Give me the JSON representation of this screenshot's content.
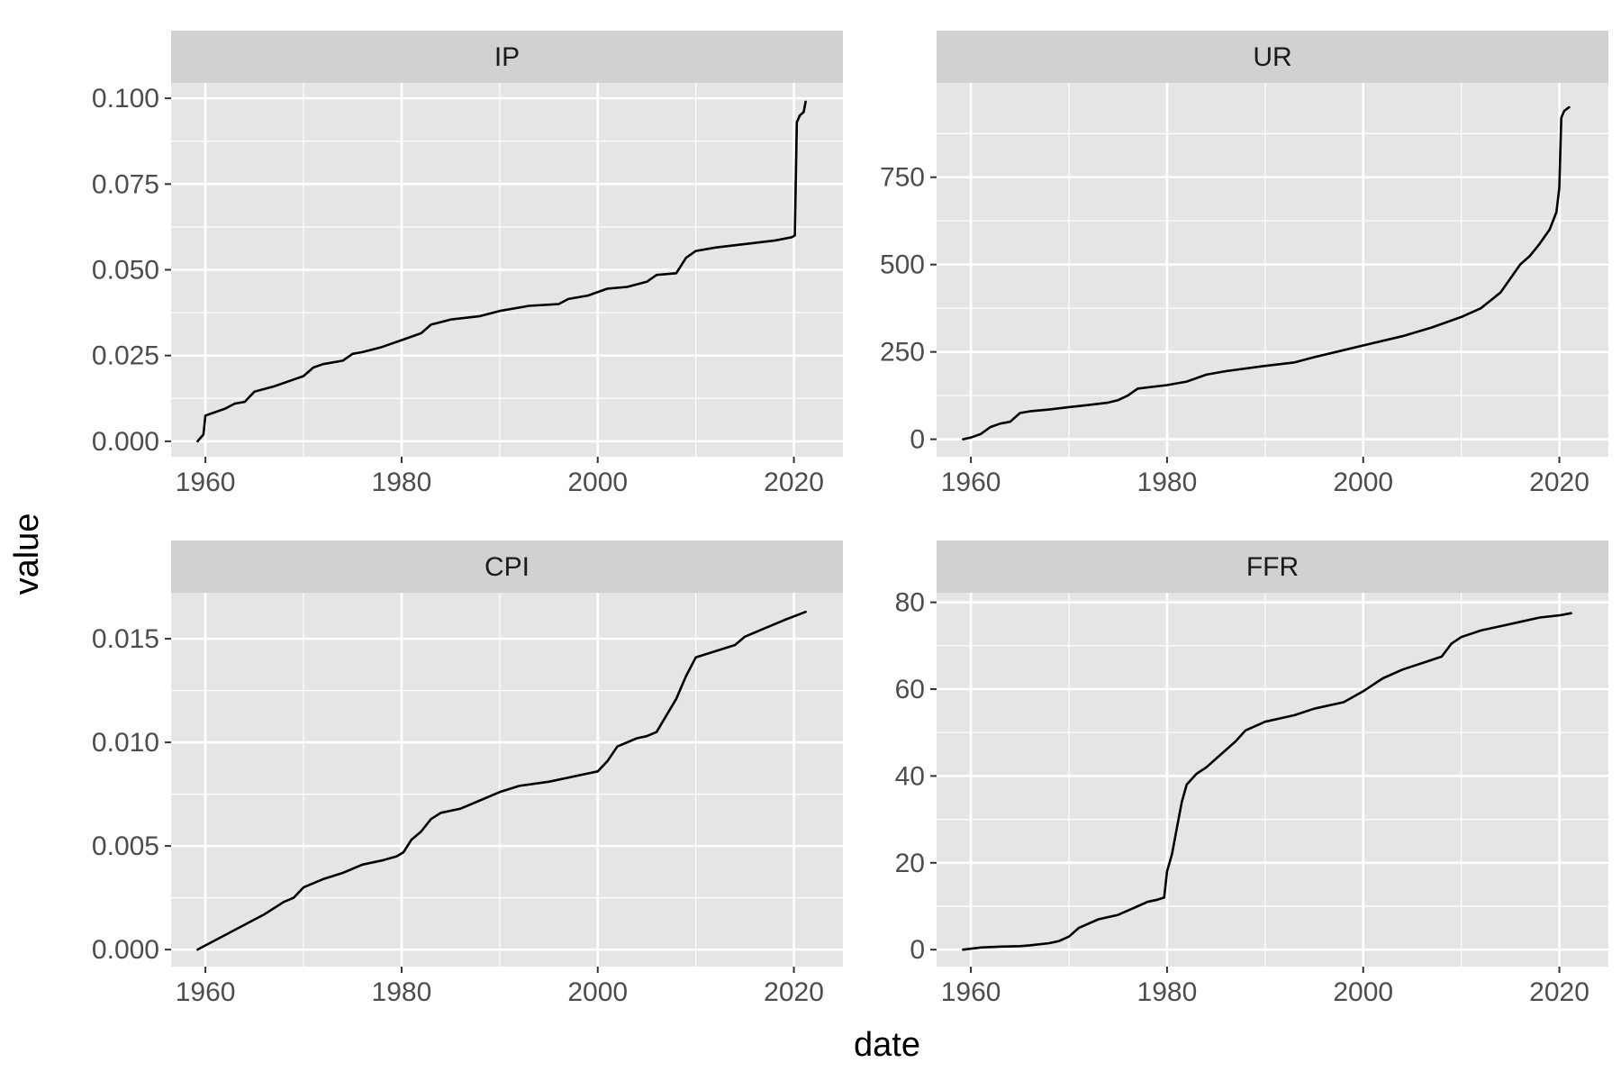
{
  "chart_data": {
    "type": "line",
    "layout": "facet_wrap",
    "xlabel": "date",
    "ylabel": "value",
    "colors": {
      "panel_bg": "#e5e5e5",
      "strip_bg": "#d1d1d1",
      "grid": "#ffffff",
      "line": "#000000",
      "tick_text": "#4d4d4d"
    },
    "panels": [
      {
        "strip": "IP",
        "xlim": [
          1956.5,
          2025
        ],
        "ylim": [
          -0.0045,
          0.1045
        ],
        "x_ticks": [
          1960,
          1980,
          2000,
          2020
        ],
        "y_ticks": [
          0,
          0.025,
          0.05,
          0.075,
          0.1
        ],
        "y_tick_labels": [
          "0.000",
          "0.025",
          "0.050",
          "0.075",
          "0.100"
        ],
        "series": [
          {
            "x": [
              1959.2,
              1959.8,
              1960.0,
              1961,
              1962,
              1963,
              1964,
              1965,
              1967,
              1969,
              1970,
              1971,
              1972,
              1974,
              1975,
              1976,
              1978,
              1980,
              1982,
              1983,
              1985,
              1988,
              1990,
              1993,
              1996,
              1997,
              1999,
              2001,
              2003,
              2005,
              2006,
              2008,
              2009,
              2010,
              2012,
              2015,
              2018,
              2019.8,
              2020.1,
              2020.3,
              2020.6,
              2021.0,
              2021.2
            ],
            "y": [
              0.0,
              0.002,
              0.0075,
              0.0085,
              0.0095,
              0.011,
              0.0115,
              0.0145,
              0.016,
              0.018,
              0.019,
              0.0215,
              0.0225,
              0.0235,
              0.0255,
              0.026,
              0.0275,
              0.0295,
              0.0315,
              0.034,
              0.0355,
              0.0365,
              0.038,
              0.0395,
              0.04,
              0.0415,
              0.0425,
              0.0445,
              0.045,
              0.0465,
              0.0485,
              0.049,
              0.0535,
              0.0555,
              0.0565,
              0.0575,
              0.0585,
              0.0595,
              0.06,
              0.093,
              0.095,
              0.096,
              0.099
            ]
          }
        ]
      },
      {
        "strip": "UR",
        "xlim": [
          1956.5,
          2025
        ],
        "ylim": [
          -50,
          1020
        ],
        "x_ticks": [
          1960,
          1980,
          2000,
          2020
        ],
        "y_ticks": [
          0,
          250,
          500,
          750
        ],
        "y_tick_labels": [
          "0",
          "250",
          "500",
          "750"
        ],
        "series": [
          {
            "x": [
              1959.2,
              1960,
              1961,
              1962,
              1963,
              1964,
              1965,
              1966,
              1968,
              1970,
              1972,
              1974,
              1975,
              1976,
              1977,
              1980,
              1982,
              1984,
              1986,
              1990,
              1993,
              1995,
              1998,
              2001,
              2004,
              2007,
              2010,
              2012,
              2014,
              2015,
              2016,
              2017,
              2018,
              2019,
              2019.7,
              2020.0,
              2020.2,
              2020.5,
              2021.0
            ],
            "y": [
              0,
              5,
              15,
              35,
              45,
              50,
              75,
              80,
              85,
              92,
              98,
              105,
              112,
              125,
              145,
              155,
              165,
              185,
              195,
              210,
              220,
              235,
              255,
              275,
              295,
              320,
              350,
              375,
              420,
              460,
              500,
              525,
              560,
              600,
              650,
              720,
              920,
              940,
              950
            ]
          }
        ]
      },
      {
        "strip": "CPI",
        "xlim": [
          1956.5,
          2025
        ],
        "ylim": [
          -0.00082,
          0.01722
        ],
        "x_ticks": [
          1960,
          1980,
          2000,
          2020
        ],
        "y_ticks": [
          0,
          0.005,
          0.01,
          0.015
        ],
        "y_tick_labels": [
          "0.000",
          "0.005",
          "0.010",
          "0.015"
        ],
        "series": [
          {
            "x": [
              1959.2,
              1960,
              1962,
              1964,
              1966,
              1968,
              1969,
              1970,
              1972,
              1974,
              1976,
              1978,
              1979.5,
              1980.2,
              1981,
              1982,
              1983,
              1984,
              1986,
              1988,
              1990,
              1992,
              1995,
              1998,
              2000,
              2001,
              2002,
              2004,
              2005,
              2006,
              2007,
              2008,
              2009,
              2010,
              2012,
              2014,
              2015,
              2017,
              2019,
              2021.2
            ],
            "y": [
              0.0,
              0.0002,
              0.0007,
              0.0012,
              0.0017,
              0.0023,
              0.0025,
              0.003,
              0.0034,
              0.0037,
              0.0041,
              0.0043,
              0.0045,
              0.0047,
              0.0053,
              0.0057,
              0.0063,
              0.0066,
              0.0068,
              0.0072,
              0.0076,
              0.0079,
              0.0081,
              0.0084,
              0.0086,
              0.0091,
              0.0098,
              0.0102,
              0.0103,
              0.0105,
              0.0113,
              0.0121,
              0.0132,
              0.0141,
              0.0144,
              0.0147,
              0.0151,
              0.0155,
              0.0159,
              0.0163
            ]
          }
        ]
      },
      {
        "strip": "FFR",
        "xlim": [
          1956.5,
          2025
        ],
        "ylim": [
          -3.9,
          82.2
        ],
        "x_ticks": [
          1960,
          1980,
          2000,
          2020
        ],
        "y_ticks": [
          0,
          20,
          40,
          60,
          80
        ],
        "y_tick_labels": [
          "0",
          "20",
          "40",
          "60",
          "80"
        ],
        "series": [
          {
            "x": [
              1959.2,
              1961,
              1963,
              1965,
              1966,
              1968,
              1969,
              1970,
              1971,
              1973,
              1975,
              1976,
              1977,
              1978,
              1979,
              1979.7,
              1980.0,
              1980.5,
              1981.0,
              1981.5,
              1982,
              1983,
              1984,
              1985,
              1986,
              1987,
              1988,
              1990,
              1993,
              1995,
              1998,
              2000,
              2002,
              2004,
              2006,
              2008,
              2009,
              2010,
              2012,
              2014,
              2016,
              2018,
              2020,
              2021.2
            ],
            "y": [
              0,
              0.5,
              0.7,
              0.8,
              1.0,
              1.5,
              2.0,
              3.0,
              5.0,
              7.0,
              8.0,
              9.0,
              10.0,
              11.0,
              11.5,
              12.0,
              18.0,
              22.0,
              28.0,
              34.0,
              38.0,
              40.5,
              42.0,
              44.0,
              46.0,
              48.0,
              50.5,
              52.5,
              54.0,
              55.5,
              57.0,
              59.5,
              62.5,
              64.5,
              66.0,
              67.5,
              70.5,
              72.0,
              73.5,
              74.5,
              75.5,
              76.5,
              77.0,
              77.5
            ]
          }
        ]
      }
    ]
  }
}
